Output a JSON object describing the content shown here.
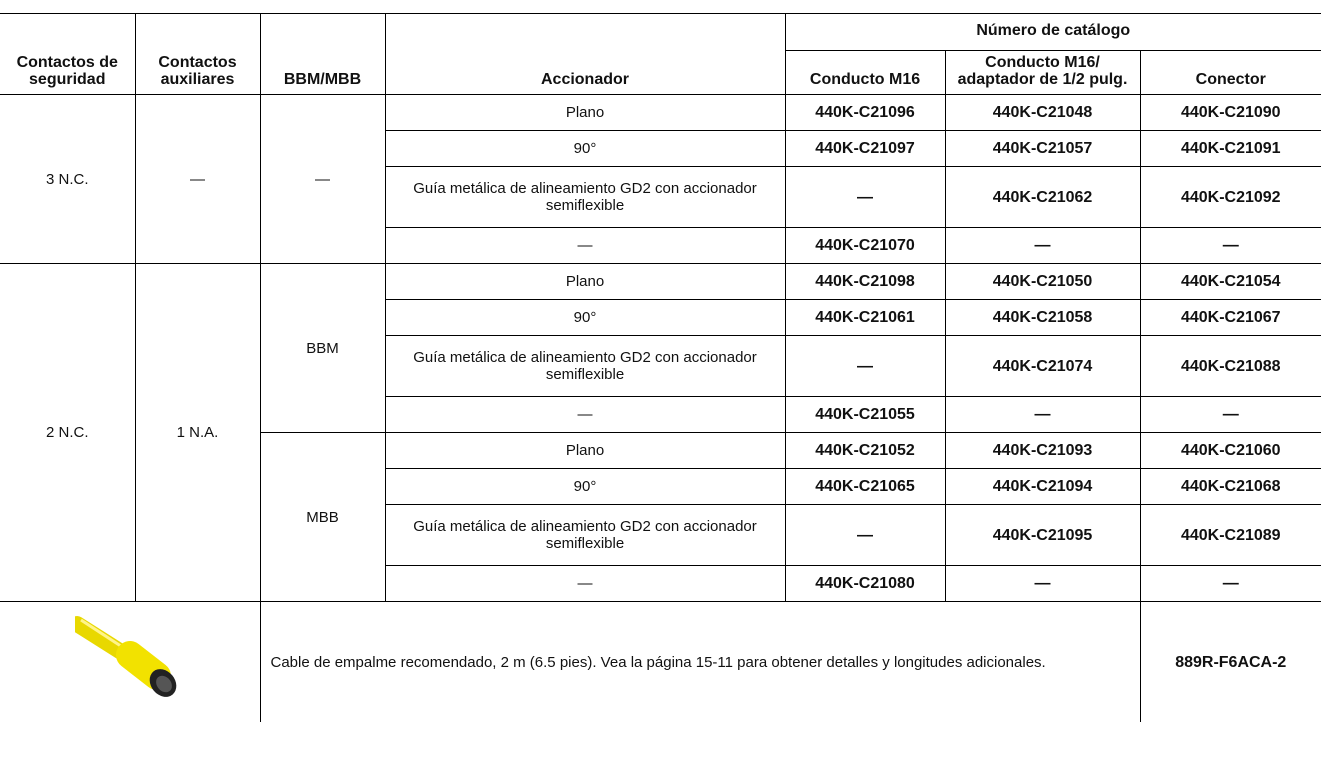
{
  "header": {
    "group_title": "Número de catálogo",
    "columns": [
      "Contactos de seguridad",
      "Contactos auxiliares",
      "BBM/MBB",
      "Accionador",
      "Conducto M16",
      "Conducto M16/ adaptador de 1/2 pulg.",
      "Conector"
    ]
  },
  "table": {
    "groups": [
      {
        "safety_contacts": "3 N.C.",
        "auxiliary_contacts": "—",
        "subgroups": [
          {
            "bbm_mbb": "—",
            "rows": [
              [
                "Plano",
                "440K-C21096",
                "440K-C21048",
                "440K-C21090"
              ],
              [
                "90°",
                "440K-C21097",
                "440K-C21057",
                "440K-C21091"
              ],
              [
                "Guía metálica de alineamiento GD2 con accionador semiflexible",
                "—",
                "440K-C21062",
                "440K-C21092"
              ],
              [
                "—",
                "440K-C21070",
                "—",
                "—"
              ]
            ]
          }
        ]
      },
      {
        "safety_contacts": "2 N.C.",
        "auxiliary_contacts": "1 N.A.",
        "subgroups": [
          {
            "bbm_mbb": "BBM",
            "rows": [
              [
                "Plano",
                "440K-C21098",
                "440K-C21050",
                "440K-C21054"
              ],
              [
                "90°",
                "440K-C21061",
                "440K-C21058",
                "440K-C21067"
              ],
              [
                "Guía metálica de alineamiento GD2 con accionador semiflexible",
                "—",
                "440K-C21074",
                "440K-C21088"
              ],
              [
                "—",
                "440K-C21055",
                "—",
                "—"
              ]
            ]
          },
          {
            "bbm_mbb": "MBB",
            "rows": [
              [
                "Plano",
                "440K-C21052",
                "440K-C21093",
                "440K-C21060"
              ],
              [
                "90°",
                "440K-C21065",
                "440K-C21094",
                "440K-C21068"
              ],
              [
                "Guía metálica de alineamiento GD2 con accionador semiflexible",
                "—",
                "440K-C21095",
                "440K-C21089"
              ],
              [
                "—",
                "440K-C21080",
                "—",
                "—"
              ]
            ]
          }
        ]
      }
    ]
  },
  "footer": {
    "description": "Cable de empalme recomendado, 2 m (6.5 pies). Vea la página 15-11 para obtener detalles y longitudes adicionales.",
    "catalog_number": "889R-F6ACA-2"
  }
}
